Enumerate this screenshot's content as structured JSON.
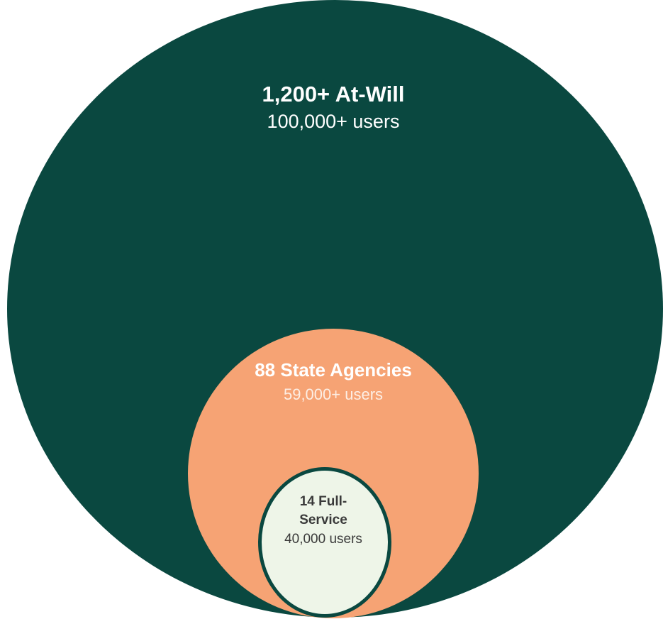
{
  "colors": {
    "outer_fill": "#0a4840",
    "middle_fill": "#f6a374",
    "inner_fill": "#eef5e8",
    "inner_border": "#0a4840",
    "light_text": "#ffffff",
    "middle_sub_text": "#fdeee4",
    "dark_text": "#3a3a3a"
  },
  "diagram": {
    "outer": {
      "title": "1,200+ At-Will",
      "subtitle": "100,000+ users"
    },
    "middle": {
      "title": "88 State Agencies",
      "subtitle": "59,000+ users"
    },
    "inner": {
      "title_line1": "14 Full-",
      "title_line2": "Service",
      "subtitle": "40,000 users"
    }
  }
}
